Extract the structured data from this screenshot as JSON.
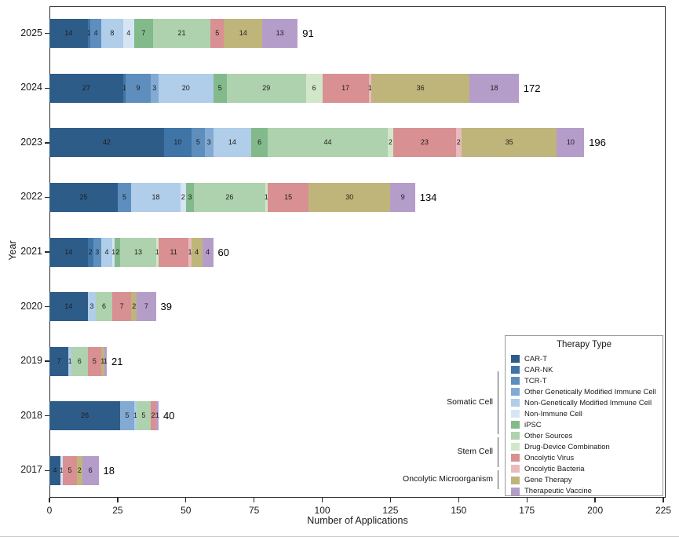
{
  "chart_data": {
    "type": "bar",
    "orientation": "horizontal",
    "stacked": true,
    "title": "",
    "xlabel": "Number of Applications",
    "ylabel": "Year",
    "xlim": [
      0,
      225
    ],
    "xticks": [
      0,
      25,
      50,
      75,
      100,
      125,
      150,
      175,
      200,
      225
    ],
    "grid": false,
    "legend": {
      "title": "Therapy Type",
      "position": "inside-lower-right"
    },
    "categories": [
      {
        "name": "CAR-T",
        "color": "#2e5c88"
      },
      {
        "name": "CAR-NK",
        "color": "#3f74a6"
      },
      {
        "name": "TCR-T",
        "color": "#5e8ebe"
      },
      {
        "name": "Other Genetically Modified Immune Cell",
        "color": "#82aad2"
      },
      {
        "name": "Non-Genetically Modified Immune Cell",
        "color": "#b0cde9"
      },
      {
        "name": "Non-Immune Cell",
        "color": "#d6e5f4"
      },
      {
        "name": "iPSC",
        "color": "#83ba8c"
      },
      {
        "name": "Other Sources",
        "color": "#aed2ad"
      },
      {
        "name": "Drug-Device Combination",
        "color": "#d2e7ca"
      },
      {
        "name": "Oncolytic Virus",
        "color": "#d89092"
      },
      {
        "name": "Oncolytic Bacteria",
        "color": "#e9babd"
      },
      {
        "name": "Gene Therapy",
        "color": "#bfb57b"
      },
      {
        "name": "Therapeutic Vaccine",
        "color": "#b59dca"
      }
    ],
    "category_groups": [
      {
        "label": "Somatic Cell",
        "start": 0,
        "end": 5
      },
      {
        "label": "Stem Cell",
        "start": 6,
        "end": 8
      },
      {
        "label": "Oncolytic Microorganism",
        "start": 9,
        "end": 10
      }
    ],
    "rows": [
      {
        "year": "2025",
        "total": 91,
        "segments": [
          [
            "CAR-T",
            14
          ],
          [
            "CAR-NK",
            1
          ],
          [
            "TCR-T",
            4
          ],
          [
            "Non-Genetically Modified Immune Cell",
            8
          ],
          [
            "Non-Immune Cell",
            4
          ],
          [
            "iPSC",
            7
          ],
          [
            "Other Sources",
            21
          ],
          [
            "Oncolytic Virus",
            5
          ],
          [
            "Gene Therapy",
            14
          ],
          [
            "Therapeutic Vaccine",
            13
          ]
        ]
      },
      {
        "year": "2024",
        "total": 172,
        "segments": [
          [
            "CAR-T",
            27
          ],
          [
            "CAR-NK",
            1
          ],
          [
            "TCR-T",
            9
          ],
          [
            "Other Genetically Modified Immune Cell",
            3
          ],
          [
            "Non-Genetically Modified Immune Cell",
            20
          ],
          [
            "iPSC",
            5
          ],
          [
            "Other Sources",
            29
          ],
          [
            "Drug-Device Combination",
            6
          ],
          [
            "Oncolytic Virus",
            17
          ],
          [
            "Oncolytic Bacteria",
            1
          ],
          [
            "Gene Therapy",
            36
          ],
          [
            "Therapeutic Vaccine",
            18
          ]
        ]
      },
      {
        "year": "2023",
        "total": 196,
        "segments": [
          [
            "CAR-T",
            42
          ],
          [
            "CAR-NK",
            10
          ],
          [
            "TCR-T",
            5
          ],
          [
            "Other Genetically Modified Immune Cell",
            3
          ],
          [
            "Non-Genetically Modified Immune Cell",
            14
          ],
          [
            "iPSC",
            6
          ],
          [
            "Other Sources",
            44
          ],
          [
            "Drug-Device Combination",
            2
          ],
          [
            "Oncolytic Virus",
            23
          ],
          [
            "Oncolytic Bacteria",
            2
          ],
          [
            "Gene Therapy",
            35
          ],
          [
            "Therapeutic Vaccine",
            10
          ]
        ]
      },
      {
        "year": "2022",
        "total": 134,
        "segments": [
          [
            "CAR-T",
            25
          ],
          [
            "TCR-T",
            5
          ],
          [
            "Non-Genetically Modified Immune Cell",
            18
          ],
          [
            "Non-Immune Cell",
            2
          ],
          [
            "iPSC",
            3
          ],
          [
            "Other Sources",
            26
          ],
          [
            "Drug-Device Combination",
            1
          ],
          [
            "Oncolytic Virus",
            15
          ],
          [
            "Gene Therapy",
            30
          ],
          [
            "Therapeutic Vaccine",
            9
          ]
        ]
      },
      {
        "year": "2021",
        "total": 60,
        "segments": [
          [
            "CAR-T",
            14
          ],
          [
            "CAR-NK",
            2
          ],
          [
            "TCR-T",
            3
          ],
          [
            "Non-Genetically Modified Immune Cell",
            4
          ],
          [
            "Non-Immune Cell",
            1
          ],
          [
            "iPSC",
            2
          ],
          [
            "Other Sources",
            13
          ],
          [
            "Drug-Device Combination",
            1
          ],
          [
            "Oncolytic Virus",
            11
          ],
          [
            "Oncolytic Bacteria",
            1
          ],
          [
            "Gene Therapy",
            4
          ],
          [
            "Therapeutic Vaccine",
            4
          ]
        ]
      },
      {
        "year": "2020",
        "total": 39,
        "segments": [
          [
            "CAR-T",
            14
          ],
          [
            "Non-Genetically Modified Immune Cell",
            3
          ],
          [
            "Other Sources",
            6
          ],
          [
            "Oncolytic Virus",
            7
          ],
          [
            "Gene Therapy",
            2
          ],
          [
            "Therapeutic Vaccine",
            7
          ]
        ]
      },
      {
        "year": "2019",
        "total": 21,
        "segments": [
          [
            "CAR-T",
            7
          ],
          [
            "Non-Genetically Modified Immune Cell",
            1
          ],
          [
            "Other Sources",
            6
          ],
          [
            "Oncolytic Virus",
            5
          ],
          [
            "Gene Therapy",
            1
          ],
          [
            "Therapeutic Vaccine",
            1
          ]
        ]
      },
      {
        "year": "2018",
        "total": 40,
        "segments": [
          [
            "CAR-T",
            26
          ],
          [
            "Other Genetically Modified Immune Cell",
            5
          ],
          [
            "Non-Genetically Modified Immune Cell",
            1
          ],
          [
            "Other Sources",
            5
          ],
          [
            "Oncolytic Virus",
            2
          ],
          [
            "Therapeutic Vaccine",
            1
          ]
        ]
      },
      {
        "year": "2017",
        "total": 18,
        "segments": [
          [
            "CAR-T",
            4
          ],
          [
            "Non-Immune Cell",
            1
          ],
          [
            "Oncolytic Virus",
            5
          ],
          [
            "Gene Therapy",
            2
          ],
          [
            "Therapeutic Vaccine",
            6
          ]
        ]
      }
    ]
  }
}
